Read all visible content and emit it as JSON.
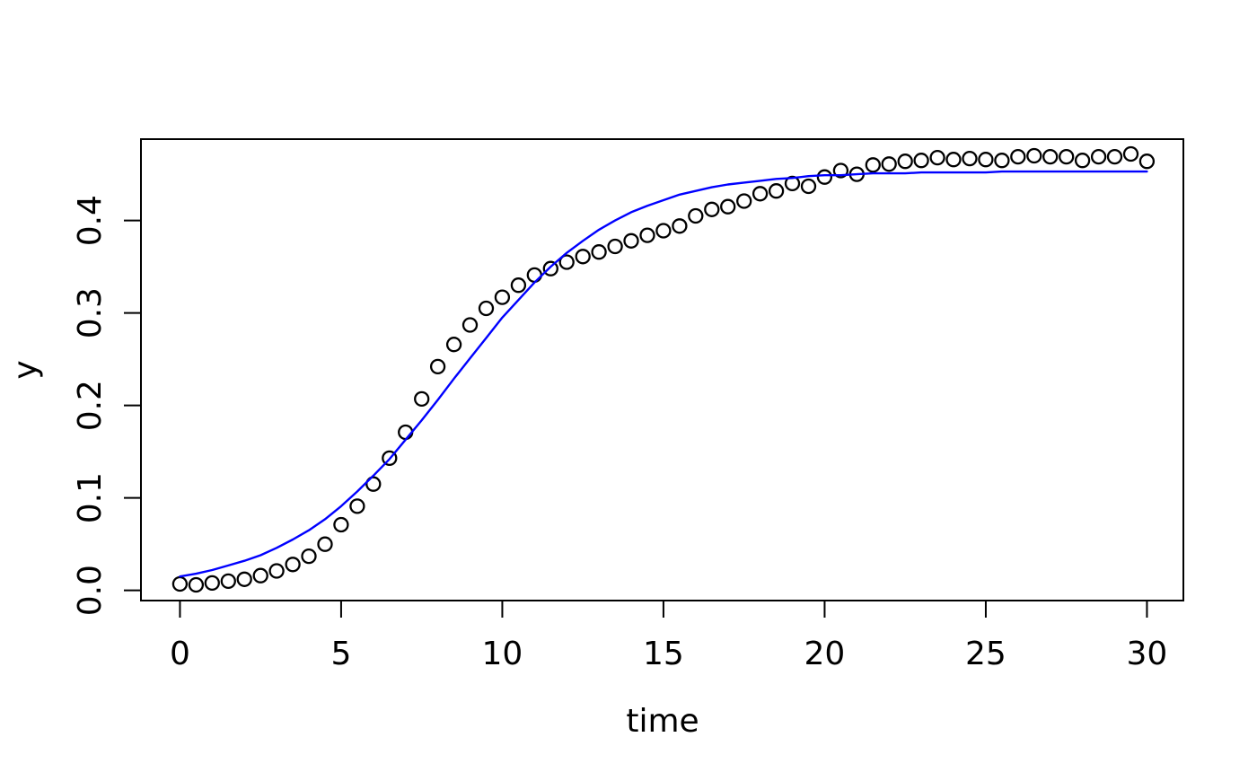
{
  "figure": {
    "background": "#ffffff",
    "box_color": "#000000",
    "tick_color": "#000000",
    "text_color": "#000000"
  },
  "chart_data": {
    "type": "scatter",
    "title": "",
    "xlabel": "time",
    "ylabel": "y",
    "grid": false,
    "legend": null,
    "xlim": [
      -1.21,
      31.13
    ],
    "ylim": [
      -0.011,
      0.488
    ],
    "x_ticks": [
      0,
      5,
      10,
      15,
      20,
      25,
      30
    ],
    "x_tick_labels": [
      "0",
      "5",
      "10",
      "15",
      "20",
      "25",
      "30"
    ],
    "y_ticks": [
      0.0,
      0.1,
      0.2,
      0.3,
      0.4
    ],
    "y_tick_labels": [
      "0.0",
      "0.1",
      "0.2",
      "0.3",
      "0.4"
    ],
    "series": [
      {
        "name": "observations",
        "type": "points",
        "marker": "open-circle",
        "color": "#000000",
        "x": [
          0,
          0.5,
          1,
          1.5,
          2,
          2.5,
          3,
          3.5,
          4,
          4.5,
          5,
          5.5,
          6,
          6.5,
          7,
          7.5,
          8,
          8.5,
          9,
          9.5,
          10,
          10.5,
          11,
          11.5,
          12,
          12.5,
          13,
          13.5,
          14,
          14.5,
          15,
          15.5,
          16,
          16.5,
          17,
          17.5,
          18,
          18.5,
          19,
          19.5,
          20,
          20.5,
          21,
          21.5,
          22,
          22.5,
          23,
          23.5,
          24,
          24.5,
          25,
          25.5,
          26,
          26.5,
          27,
          27.5,
          28,
          28.5,
          29,
          29.5,
          30
        ],
        "y": [
          0.007,
          0.006,
          0.008,
          0.01,
          0.012,
          0.016,
          0.021,
          0.028,
          0.037,
          0.05,
          0.071,
          0.091,
          0.115,
          0.143,
          0.171,
          0.207,
          0.242,
          0.266,
          0.287,
          0.305,
          0.317,
          0.33,
          0.341,
          0.348,
          0.355,
          0.361,
          0.366,
          0.372,
          0.378,
          0.384,
          0.389,
          0.394,
          0.405,
          0.412,
          0.415,
          0.421,
          0.429,
          0.432,
          0.44,
          0.437,
          0.447,
          0.454,
          0.45,
          0.46,
          0.461,
          0.464,
          0.465,
          0.468,
          0.466,
          0.467,
          0.466,
          0.465,
          0.469,
          0.47,
          0.469,
          0.469,
          0.465,
          0.469,
          0.469,
          0.472,
          0.464
        ]
      },
      {
        "name": "fitted-curve",
        "type": "line",
        "color": "#0000FF",
        "model": "logistic K=0.453, r=0.40, midpoint=8.45",
        "x": [
          0,
          0.5,
          1,
          1.5,
          2,
          2.5,
          3,
          3.5,
          4,
          4.5,
          5,
          5.5,
          6,
          6.5,
          7,
          7.5,
          8,
          8.5,
          9,
          9.5,
          10,
          10.5,
          11,
          11.5,
          12,
          12.5,
          13,
          13.5,
          14,
          14.5,
          15,
          15.5,
          16,
          16.5,
          17,
          17.5,
          18,
          18.5,
          19,
          19.5,
          20,
          20.5,
          21,
          21.5,
          22,
          22.5,
          23,
          23.5,
          24,
          24.5,
          25,
          25.5,
          26,
          26.5,
          27,
          27.5,
          28,
          28.5,
          29,
          29.5,
          30
        ],
        "y": [
          0.015,
          0.018,
          0.022,
          0.027,
          0.032,
          0.038,
          0.046,
          0.055,
          0.065,
          0.077,
          0.091,
          0.107,
          0.124,
          0.142,
          0.163,
          0.184,
          0.206,
          0.229,
          0.251,
          0.273,
          0.295,
          0.314,
          0.333,
          0.35,
          0.365,
          0.378,
          0.39,
          0.4,
          0.409,
          0.416,
          0.422,
          0.428,
          0.432,
          0.436,
          0.439,
          0.441,
          0.443,
          0.445,
          0.446,
          0.448,
          0.449,
          0.449,
          0.45,
          0.451,
          0.451,
          0.451,
          0.452,
          0.452,
          0.452,
          0.452,
          0.452,
          0.453,
          0.453,
          0.453,
          0.453,
          0.453,
          0.453,
          0.453,
          0.453,
          0.453,
          0.453
        ]
      }
    ]
  }
}
